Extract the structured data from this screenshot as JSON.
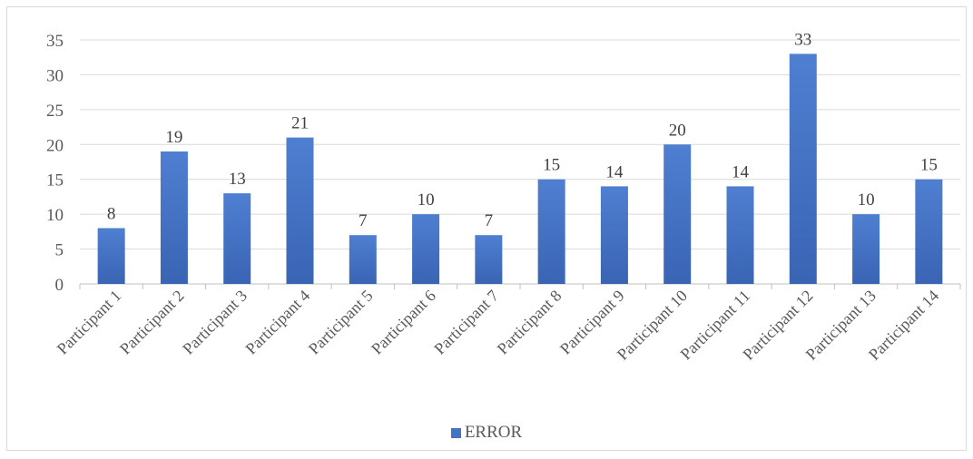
{
  "chart_data": {
    "type": "bar",
    "categories": [
      "Participant 1",
      "Participant 2",
      "Participant 3",
      "Participant 4",
      "Participant 5",
      "Participant 6",
      "Participant 7",
      "Participant 8",
      "Participant 9",
      "Participant 10",
      "Participant 11",
      "Participant 12",
      "Participant 13",
      "Participant 14"
    ],
    "series": [
      {
        "name": "ERROR",
        "values": [
          8,
          19,
          13,
          21,
          7,
          10,
          7,
          15,
          14,
          20,
          14,
          33,
          10,
          15
        ]
      }
    ],
    "ylim": [
      0,
      35
    ],
    "yticks": [
      0,
      5,
      10,
      15,
      20,
      25,
      30,
      35
    ],
    "grid": true,
    "data_labels": true,
    "legend_position": "bottom",
    "bar_color": "#4472C4"
  }
}
